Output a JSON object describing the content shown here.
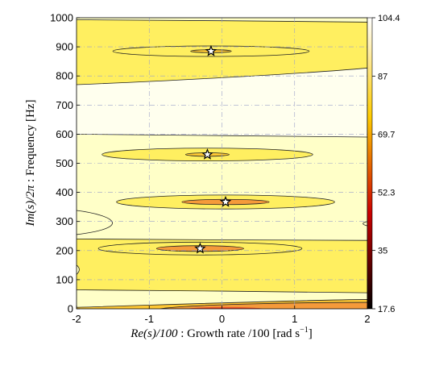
{
  "chart_data": {
    "type": "heatmap",
    "subtype": "filled-contour",
    "xlabel_parts": [
      "Re(s)/100",
      " : Growth rate  /100   [rad s",
      "−1",
      "]"
    ],
    "ylabel_parts": [
      "Im(s)/2π",
      " : Frequency   [Hz]"
    ],
    "xlim": [
      -2,
      2
    ],
    "ylim": [
      0,
      1000
    ],
    "x_ticks": [
      -2,
      -1,
      0,
      1,
      2
    ],
    "x_tick_labels": [
      "-2",
      "-1",
      "0",
      "1",
      "2"
    ],
    "y_ticks": [
      0,
      100,
      200,
      300,
      400,
      500,
      600,
      700,
      800,
      900,
      1000
    ],
    "y_tick_labels": [
      "0",
      "100",
      "200",
      "300",
      "400",
      "500",
      "600",
      "700",
      "800",
      "900",
      "1000"
    ],
    "grid": true,
    "colormap": "hot",
    "colorbar": {
      "range": [
        17.6,
        104.4
      ],
      "ticks": [
        17.6,
        35,
        52.3,
        69.7,
        87,
        104.4
      ],
      "tick_labels": [
        "17.6",
        "35",
        "52.3",
        "69.7",
        "87",
        "104.4"
      ]
    },
    "poles": [
      {
        "x": -0.15,
        "y": 885
      },
      {
        "x": -0.2,
        "y": 530
      },
      {
        "x": 0.05,
        "y": 367
      },
      {
        "x": -0.3,
        "y": 207
      }
    ],
    "colors": {
      "level_0": "#ffffee",
      "level_1": "#ffffc8",
      "level_2": "#ffef60",
      "level_3": "#ffc833",
      "level_4": "#f59a3a",
      "level_5": "#e8502a",
      "level_6": "#b01414"
    }
  }
}
